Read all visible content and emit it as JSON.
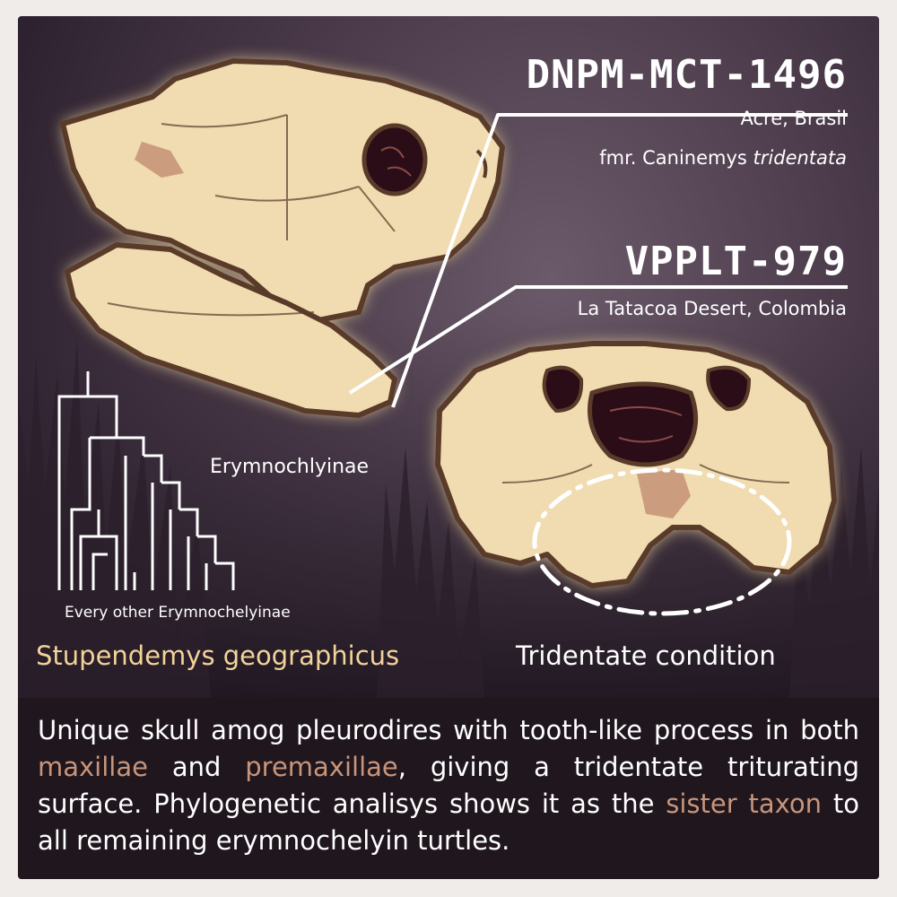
{
  "specimens": {
    "first": {
      "id": "DNPM-MCT-1496",
      "location": "Acre, Brasil",
      "former_name_prefix": "fmr. Caninemys ",
      "former_name_italic": "tridentata"
    },
    "second": {
      "id": "VPPLT-979",
      "location": "La Tatacoa Desert, Colombia"
    }
  },
  "cladogram": {
    "clade_label": "Erymnochlyinae",
    "others_label": "Every other Erymnochelyinae"
  },
  "species_label": "Stupendemys geographicus",
  "condition_label": "Tridentate condition",
  "caption": {
    "part1": "Unique skull amog pleurodires with tooth-like process in both ",
    "highlight1": "maxillae",
    "part2": " and ",
    "highlight2": "premaxillae",
    "part3": ", giving a tridentate triturating surface. Phylogenetic analisys shows it as the ",
    "highlight3": "sister taxon",
    "part4": " to all remaining erymnochelyin turtles."
  },
  "colors": {
    "background": "#3a2c3a",
    "bone": "#f0dcb0",
    "outline": "#5a3a2a",
    "highlight": "#c8957a",
    "species": "#f2d39a",
    "caption_bg": "#1f161e"
  }
}
